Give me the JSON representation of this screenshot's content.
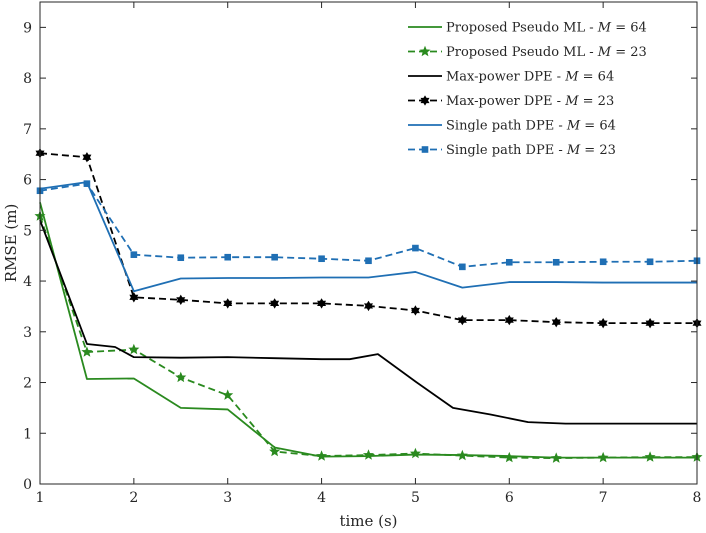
{
  "chart_data": {
    "type": "line",
    "title": "",
    "xlabel": "time (s)",
    "ylabel": "RMSE (m)",
    "xlim": [
      1,
      8
    ],
    "ylim": [
      0,
      9.5
    ],
    "xticks": [
      "1",
      "2",
      "3",
      "4",
      "5",
      "6",
      "7",
      "8"
    ],
    "yticks": [
      "0",
      "1",
      "2",
      "3",
      "4",
      "5",
      "6",
      "7",
      "8",
      "9"
    ],
    "legend_position": "top-right",
    "series": [
      {
        "name": "Proposed Pseudo ML - M = 64",
        "label_prefix": "Proposed Pseudo ML - ",
        "label_suffix": " = 64",
        "color": "#2a8a1f",
        "dash": "solid",
        "marker": "none",
        "x": [
          1,
          1.5,
          2,
          2.5,
          3,
          3.5,
          4,
          4.5,
          5,
          5.5,
          6,
          6.5,
          7,
          7.5,
          8
        ],
        "y": [
          5.55,
          2.07,
          2.08,
          1.5,
          1.47,
          0.72,
          0.54,
          0.55,
          0.58,
          0.57,
          0.55,
          0.52,
          0.52,
          0.52,
          0.52
        ]
      },
      {
        "name": "Proposed Pseudo ML - M = 23",
        "label_prefix": "Proposed Pseudo ML - ",
        "label_suffix": " = 23",
        "color": "#2a8a1f",
        "dash": "dashed",
        "marker": "star",
        "x": [
          1,
          1.5,
          2,
          2.5,
          3,
          3.5,
          4,
          4.5,
          5,
          5.5,
          6,
          6.5,
          7,
          7.5,
          8
        ],
        "y": [
          5.28,
          2.6,
          2.65,
          2.1,
          1.75,
          0.64,
          0.55,
          0.57,
          0.6,
          0.56,
          0.52,
          0.51,
          0.52,
          0.53,
          0.53
        ]
      },
      {
        "name": "Max-power DPE - M = 64",
        "label_prefix": "Max-power DPE - ",
        "label_suffix": " = 64",
        "color": "#000000",
        "dash": "solid",
        "marker": "none",
        "x": [
          1,
          1.5,
          1.8,
          2,
          2.5,
          3,
          3.5,
          4,
          4.3,
          4.6,
          5,
          5.4,
          5.8,
          6.2,
          6.6,
          7,
          7.5,
          8
        ],
        "y": [
          5.2,
          2.76,
          2.7,
          2.5,
          2.49,
          2.5,
          2.48,
          2.46,
          2.46,
          2.56,
          2.02,
          1.5,
          1.37,
          1.22,
          1.19,
          1.19,
          1.19,
          1.19
        ]
      },
      {
        "name": "Max-power DPE - M = 23",
        "label_prefix": "Max-power DPE - ",
        "label_suffix": " = 23",
        "color": "#000000",
        "dash": "dashed",
        "marker": "hexagram",
        "x": [
          1,
          1.5,
          2,
          2.5,
          3,
          3.5,
          4,
          4.5,
          5,
          5.5,
          6,
          6.5,
          7,
          7.5,
          8
        ],
        "y": [
          6.52,
          6.44,
          3.68,
          3.63,
          3.56,
          3.56,
          3.56,
          3.51,
          3.42,
          3.23,
          3.23,
          3.19,
          3.17,
          3.17,
          3.17
        ]
      },
      {
        "name": "Single path DPE - M = 64",
        "label_prefix": "Single path DPE - ",
        "label_suffix": " = 64",
        "color": "#1f6fb4",
        "dash": "solid",
        "marker": "none",
        "x": [
          1,
          1.5,
          2,
          2.5,
          3,
          3.5,
          4,
          4.5,
          5,
          5.5,
          6,
          6.5,
          7,
          7.5,
          8
        ],
        "y": [
          5.82,
          5.95,
          3.8,
          4.05,
          4.06,
          4.06,
          4.07,
          4.07,
          4.18,
          3.87,
          3.98,
          3.98,
          3.97,
          3.97,
          3.97
        ]
      },
      {
        "name": "Single path DPE - M = 23",
        "label_prefix": "Single path DPE - ",
        "label_suffix": " = 23",
        "color": "#1f6fb4",
        "dash": "dashed",
        "marker": "square",
        "x": [
          1,
          1.5,
          2,
          2.5,
          3,
          3.5,
          4,
          4.5,
          5,
          5.5,
          6,
          6.5,
          7,
          7.5,
          8
        ],
        "y": [
          5.78,
          5.92,
          4.52,
          4.46,
          4.47,
          4.47,
          4.44,
          4.4,
          4.65,
          4.28,
          4.37,
          4.37,
          4.38,
          4.38,
          4.4
        ]
      }
    ],
    "legend_variable": "M"
  }
}
